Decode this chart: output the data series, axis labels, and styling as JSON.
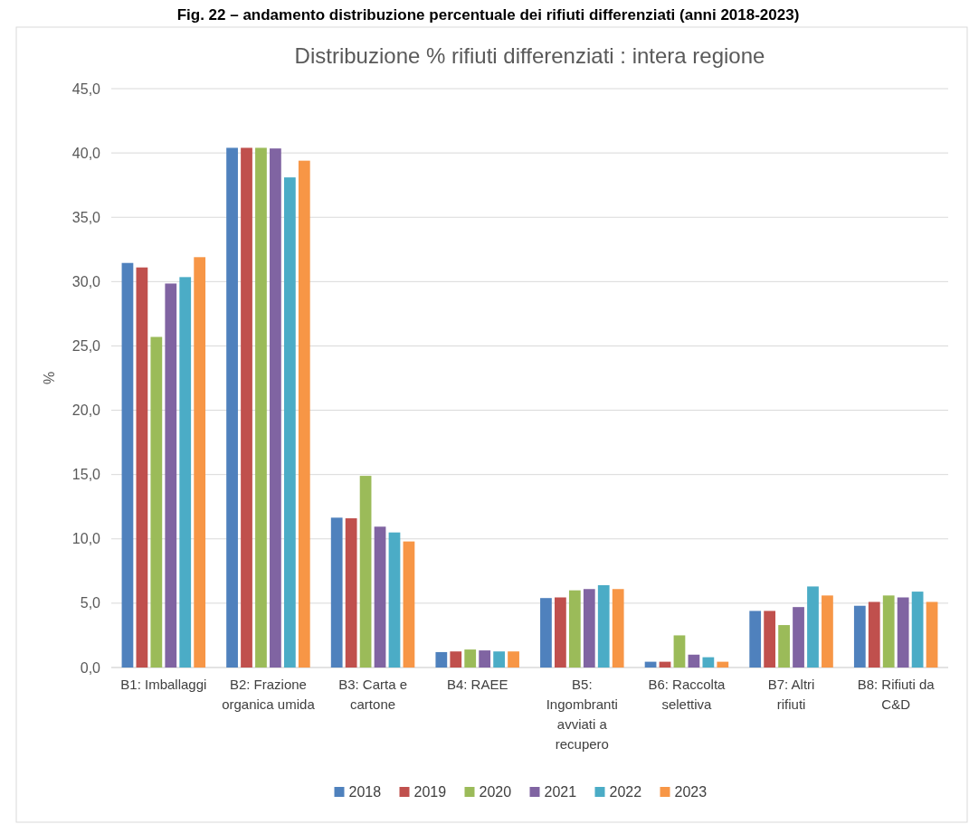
{
  "chart_data": {
    "type": "bar",
    "title": "Distribuzione % rifiuti differenziati  : intera regione",
    "ylabel": "%",
    "annotations": [
      "Fig. 22 – andamento distribuzione percentuale dei rifiuti differenziati (anni 2018-2023)"
    ],
    "categories": [
      "B1: Imballaggi",
      "B2: Frazione organica umida",
      "B3: Carta e cartone",
      "B4: RAEE",
      "B5: Ingombranti avviati a recupero",
      "B6: Raccolta selettiva",
      "B7: Altri rifiuti",
      "B8: Rifiuti da C&D"
    ],
    "series": [
      {
        "name": "2018",
        "color": "#4f81bd",
        "values": [
          31.45,
          40.4,
          11.65,
          1.2,
          5.4,
          0.45,
          4.4,
          4.8
        ]
      },
      {
        "name": "2019",
        "color": "#c0504d",
        "values": [
          31.1,
          40.4,
          11.6,
          1.25,
          5.45,
          0.45,
          4.4,
          5.1
        ]
      },
      {
        "name": "2020",
        "color": "#9bbb59",
        "values": [
          25.7,
          40.4,
          14.9,
          1.4,
          6.0,
          2.5,
          3.3,
          5.6
        ]
      },
      {
        "name": "2021",
        "color": "#8064a2",
        "values": [
          29.85,
          40.35,
          10.95,
          1.33,
          6.1,
          1.0,
          4.7,
          5.45
        ]
      },
      {
        "name": "2022",
        "color": "#4bacc6",
        "values": [
          30.35,
          38.1,
          10.5,
          1.25,
          6.4,
          0.8,
          6.3,
          5.9
        ]
      },
      {
        "name": "2023",
        "color": "#f79646",
        "values": [
          31.9,
          39.4,
          9.8,
          1.25,
          6.1,
          0.45,
          5.6,
          5.1
        ]
      }
    ],
    "ylim": [
      0,
      45
    ],
    "yticks": [
      {
        "value": 0,
        "label": "0,0"
      },
      {
        "value": 5,
        "label": "5,0"
      },
      {
        "value": 10,
        "label": "10,0"
      },
      {
        "value": 15,
        "label": "15,0"
      },
      {
        "value": 20,
        "label": "20,0"
      },
      {
        "value": 25,
        "label": "25,0"
      },
      {
        "value": 30,
        "label": "30,0"
      },
      {
        "value": 35,
        "label": "35,0"
      },
      {
        "value": 40,
        "label": "40,0"
      },
      {
        "value": 45,
        "label": "45,0"
      }
    ],
    "grid": "y",
    "legend": "bottom"
  }
}
